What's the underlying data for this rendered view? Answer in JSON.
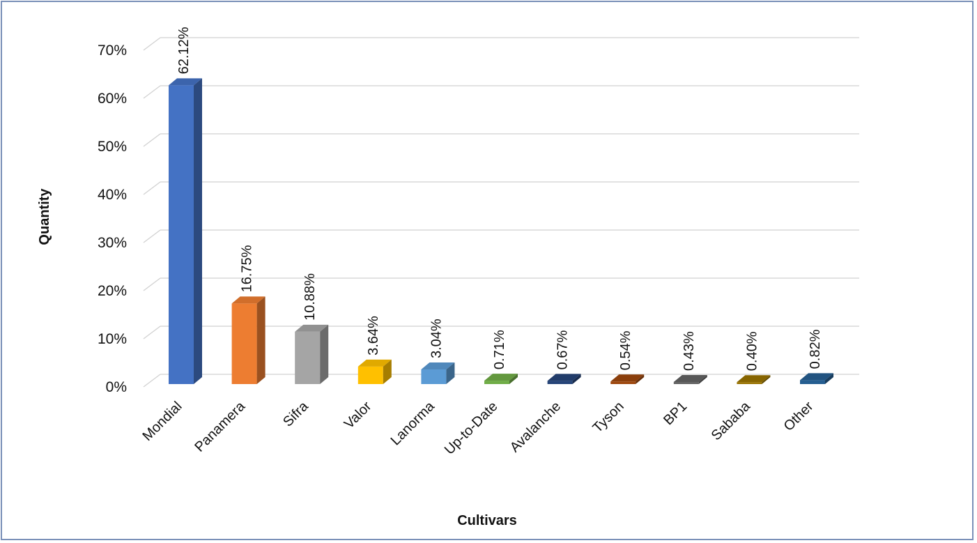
{
  "chart_data": {
    "type": "bar",
    "style": "3d-column",
    "title": "",
    "xlabel": "Cultivars",
    "ylabel": "Quantity",
    "ylim": [
      0,
      70
    ],
    "yticks": [
      "0%",
      "10%",
      "20%",
      "30%",
      "40%",
      "50%",
      "60%",
      "70%"
    ],
    "grid": true,
    "legend": "none",
    "categories": [
      "Mondial",
      "Panamera",
      "Sifra",
      "Valor",
      "Lanorma",
      "Up-to-Date",
      "Avalanche",
      "Tyson",
      "BP1",
      "Sababa",
      "Other"
    ],
    "values": [
      62.12,
      16.75,
      10.88,
      3.64,
      3.04,
      0.71,
      0.67,
      0.54,
      0.43,
      0.4,
      0.82
    ],
    "data_labels": [
      "62.12%",
      "16.75%",
      "10.88%",
      "3.64%",
      "3.04%",
      "0.71%",
      "0.67%",
      "0.54%",
      "0.43%",
      "0.40%",
      "0.82%"
    ],
    "colors": [
      "#4472c4",
      "#ed7d31",
      "#a5a5a5",
      "#ffc000",
      "#5b9bd5",
      "#70ad47",
      "#264478",
      "#9e480e",
      "#636363",
      "#997300",
      "#255e91"
    ]
  }
}
